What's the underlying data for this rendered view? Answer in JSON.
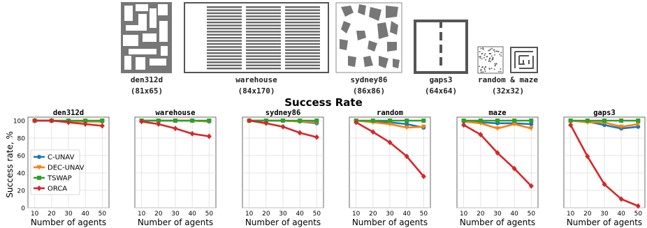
{
  "maps": [
    {
      "name": "den312d",
      "size": "(81x65)"
    },
    {
      "name": "warehouse",
      "size": "(84x170)"
    },
    {
      "name": "sydney86",
      "size": "(86x86)"
    },
    {
      "name": "gaps3",
      "size": "(64x64)"
    },
    {
      "name": "random & maze",
      "size": "(32x32)"
    }
  ],
  "figure_title": "Success Rate",
  "colors": {
    "C-UNAV": "#1f77b4",
    "DEC-UNAV": "#ff7f0e",
    "TSWAP": "#2ca02c",
    "ORCA": "#d62728"
  },
  "chart_data": [
    {
      "type": "line",
      "title": "den312d",
      "xlabel": "Number of agents",
      "ylabel": "Success rate, %",
      "x": [
        10,
        20,
        30,
        40,
        50
      ],
      "xticks": [
        "10",
        "20",
        "30",
        "40",
        "50"
      ],
      "yticks": [
        "0",
        "20",
        "40",
        "60",
        "80",
        "100"
      ],
      "ylim": [
        0,
        104
      ],
      "grid": true,
      "legend": [
        "C-UNAV",
        "DEC-UNAV",
        "TSWAP",
        "ORCA"
      ],
      "legend_position": "lower-left",
      "series": [
        {
          "name": "C-UNAV",
          "values": [
            100,
            100,
            99,
            99,
            99
          ]
        },
        {
          "name": "DEC-UNAV",
          "values": [
            100,
            100,
            99,
            99,
            99
          ]
        },
        {
          "name": "TSWAP",
          "values": [
            100,
            100,
            100,
            100,
            100
          ]
        },
        {
          "name": "ORCA",
          "values": [
            100,
            100,
            98,
            96,
            94
          ]
        }
      ]
    },
    {
      "type": "line",
      "title": "warehouse",
      "xlabel": "Number of agents",
      "ylabel": "",
      "x": [
        10,
        20,
        30,
        40,
        50
      ],
      "xticks": [
        "10",
        "20",
        "30",
        "40",
        "50"
      ],
      "ylim": [
        0,
        104
      ],
      "grid": true,
      "series": [
        {
          "name": "C-UNAV",
          "values": [
            100,
            100,
            100,
            100,
            99
          ]
        },
        {
          "name": "DEC-UNAV",
          "values": [
            100,
            100,
            100,
            100,
            99
          ]
        },
        {
          "name": "TSWAP",
          "values": [
            100,
            100,
            100,
            100,
            100
          ]
        },
        {
          "name": "ORCA",
          "values": [
            99,
            96,
            91,
            85,
            82
          ]
        }
      ]
    },
    {
      "type": "line",
      "title": "sydney86",
      "xlabel": "Number of agents",
      "ylabel": "",
      "x": [
        10,
        20,
        30,
        40,
        50
      ],
      "xticks": [
        "10",
        "20",
        "30",
        "40",
        "50"
      ],
      "ylim": [
        0,
        104
      ],
      "grid": true,
      "series": [
        {
          "name": "C-UNAV",
          "values": [
            100,
            100,
            100,
            99,
            97
          ]
        },
        {
          "name": "DEC-UNAV",
          "values": [
            100,
            100,
            100,
            99,
            98
          ]
        },
        {
          "name": "TSWAP",
          "values": [
            100,
            100,
            100,
            100,
            100
          ]
        },
        {
          "name": "ORCA",
          "values": [
            100,
            97,
            93,
            86,
            81
          ]
        }
      ]
    },
    {
      "type": "line",
      "title": "random",
      "xlabel": "Number of agents",
      "ylabel": "",
      "x": [
        10,
        20,
        30,
        40,
        50
      ],
      "xticks": [
        "10",
        "20",
        "30",
        "40",
        "50"
      ],
      "ylim": [
        0,
        104
      ],
      "grid": true,
      "series": [
        {
          "name": "C-UNAV",
          "values": [
            100,
            99,
            98,
            96,
            92
          ]
        },
        {
          "name": "DEC-UNAV",
          "values": [
            100,
            98,
            96,
            92,
            93
          ]
        },
        {
          "name": "TSWAP",
          "values": [
            100,
            100,
            100,
            100,
            100
          ]
        },
        {
          "name": "ORCA",
          "values": [
            98,
            87,
            75,
            59,
            36
          ]
        }
      ]
    },
    {
      "type": "line",
      "title": "maze",
      "xlabel": "Number of agents",
      "ylabel": "",
      "x": [
        10,
        20,
        30,
        40,
        50
      ],
      "xticks": [
        "10",
        "20",
        "30",
        "40",
        "50"
      ],
      "ylim": [
        0,
        104
      ],
      "grid": true,
      "series": [
        {
          "name": "C-UNAV",
          "values": [
            99,
            98,
            97,
            97,
            96
          ]
        },
        {
          "name": "DEC-UNAV",
          "values": [
            99,
            97,
            91,
            96,
            91
          ]
        },
        {
          "name": "TSWAP",
          "values": [
            100,
            100,
            100,
            100,
            100
          ]
        },
        {
          "name": "ORCA",
          "values": [
            95,
            84,
            63,
            45,
            25
          ]
        }
      ]
    },
    {
      "type": "line",
      "title": "gaps3",
      "xlabel": "Number of agents",
      "ylabel": "",
      "x": [
        10,
        20,
        30,
        40,
        50
      ],
      "xticks": [
        "10",
        "20",
        "30",
        "40",
        "50"
      ],
      "ylim": [
        0,
        104
      ],
      "grid": true,
      "series": [
        {
          "name": "C-UNAV",
          "values": [
            100,
            99,
            95,
            91,
            93
          ]
        },
        {
          "name": "DEC-UNAV",
          "values": [
            100,
            98,
            98,
            93,
            96
          ]
        },
        {
          "name": "TSWAP",
          "values": [
            100,
            100,
            100,
            100,
            100
          ]
        },
        {
          "name": "ORCA",
          "values": [
            95,
            59,
            27,
            10,
            2
          ]
        }
      ]
    }
  ]
}
